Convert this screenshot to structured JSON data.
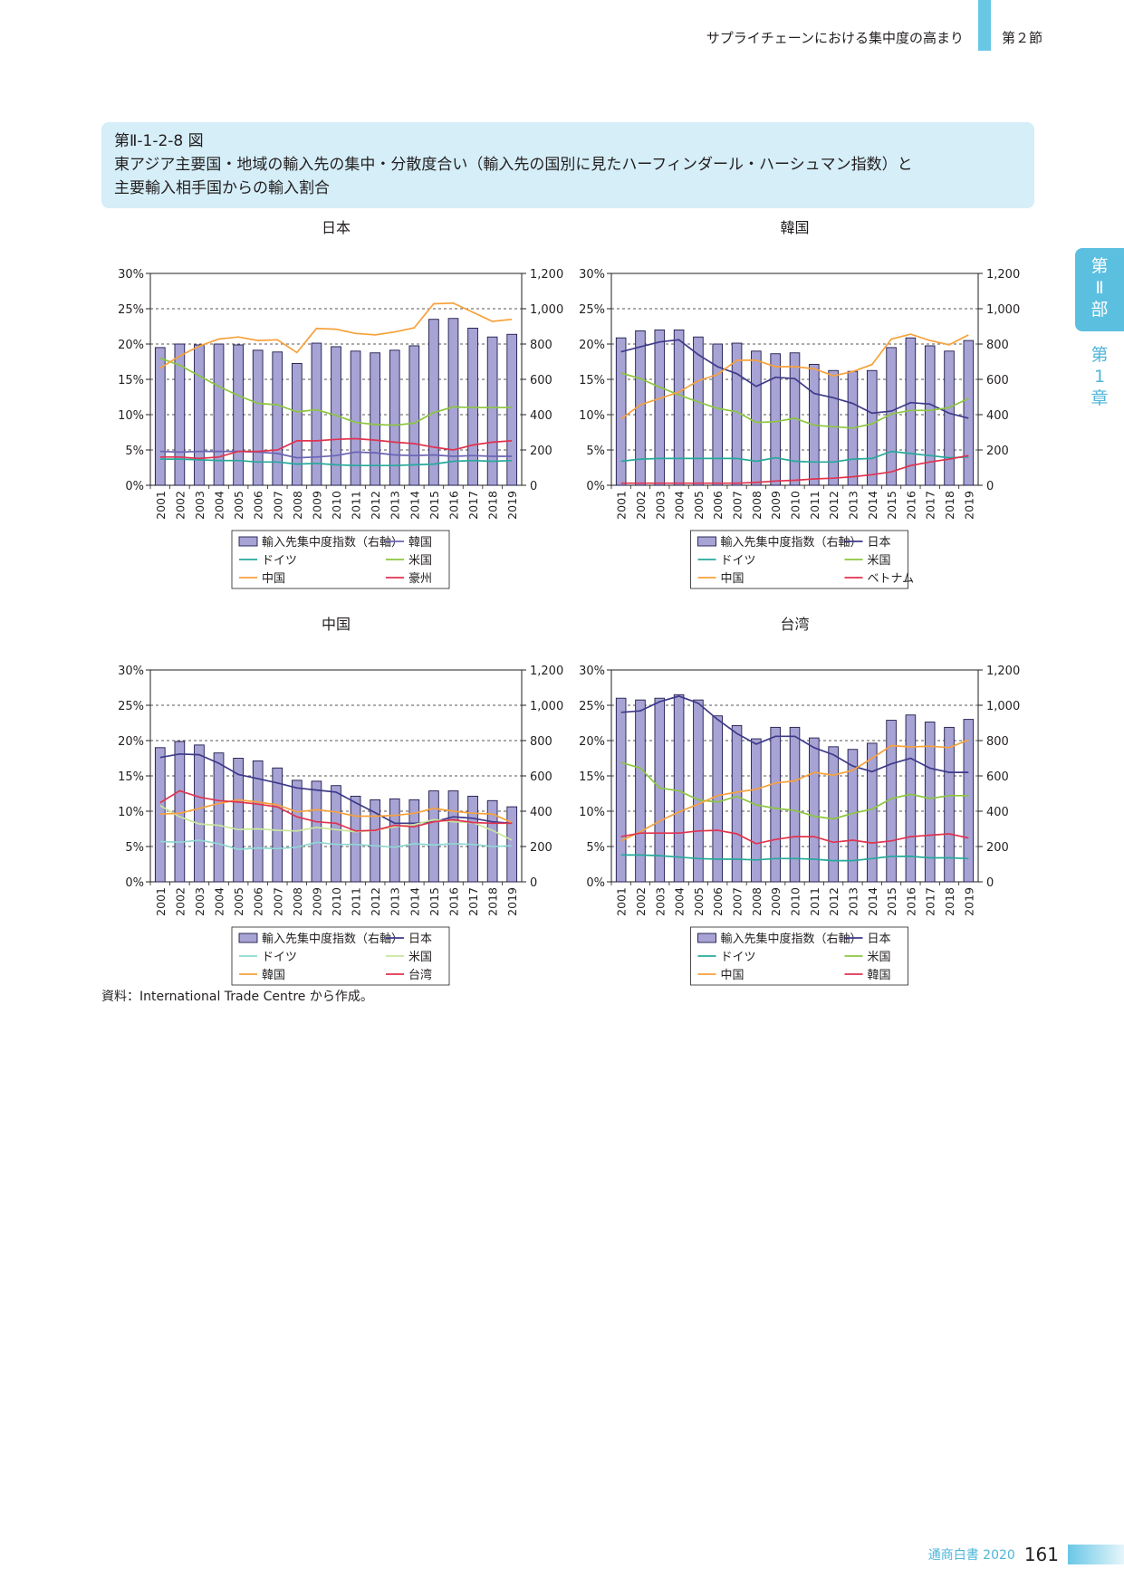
{
  "header": {
    "section": "サプライチェーンにおける集中度の高まり",
    "part": "第２節"
  },
  "side_tab": {
    "part": [
      "第",
      "Ⅱ",
      "部"
    ],
    "chapter": [
      "第",
      "1",
      "章"
    ]
  },
  "figure": {
    "number": "第Ⅱ-1-2-8 図",
    "title_line1": "東アジア主要国・地域の輸入先の集中・分散度合い（輸入先の国別に見たハーフィンダール・ハーシュマン指数）と",
    "title_line2": "主要輸入相手国からの輸入割合"
  },
  "source": "資料：International Trade Centre から作成。",
  "footer": {
    "publication": "通商白書 2020",
    "page": "161"
  },
  "colors": {
    "bar": "#a7a3d4",
    "bar_edge": "#1e1a4a",
    "blue": "#3e3a8a",
    "teal": "#26a99b",
    "green": "#8cc63f",
    "orange": "#f7a13b",
    "red": "#e0334f"
  },
  "chart_data": [
    {
      "type": "bar",
      "title": "日本",
      "categories": [
        "2001",
        "2002",
        "2003",
        "2004",
        "2005",
        "2006",
        "2007",
        "2008",
        "2009",
        "2010",
        "2011",
        "2012",
        "2013",
        "2014",
        "2015",
        "2016",
        "2017",
        "2018",
        "2019"
      ],
      "left_ticks": [
        "0%",
        "5%",
        "10%",
        "15%",
        "20%",
        "25%",
        "30%"
      ],
      "right_ticks": [
        "0",
        "200",
        "400",
        "600",
        "800",
        "1,000",
        "1,200"
      ],
      "ylim": [
        0,
        30
      ],
      "ylim_right": [
        0,
        1200
      ],
      "grid": "dashed",
      "bars": {
        "name": "輸入先集中度指数（右軸）",
        "values": [
          780,
          800,
          795,
          800,
          795,
          765,
          755,
          690,
          805,
          785,
          760,
          750,
          765,
          790,
          940,
          945,
          890,
          840,
          855
        ]
      },
      "lines": [
        {
          "name": "韓国",
          "color": "#6a64b4",
          "values": [
            4.8,
            4.7,
            4.8,
            4.8,
            4.8,
            4.7,
            4.5,
            3.9,
            4.0,
            4.2,
            4.7,
            4.6,
            4.3,
            4.2,
            4.3,
            4.1,
            4.2,
            4.1,
            4.1
          ]
        },
        {
          "name": "ドイツ",
          "color": "#26a99b",
          "values": [
            3.7,
            3.7,
            3.6,
            3.5,
            3.5,
            3.3,
            3.3,
            3.0,
            3.1,
            2.9,
            2.8,
            2.8,
            2.8,
            2.9,
            3.0,
            3.4,
            3.5,
            3.4,
            3.5
          ]
        },
        {
          "name": "米国",
          "color": "#8cc63f",
          "values": [
            18.0,
            17.0,
            15.5,
            14.0,
            12.7,
            11.6,
            11.4,
            10.4,
            10.7,
            9.9,
            8.9,
            8.6,
            8.5,
            8.8,
            10.3,
            11.1,
            11.0,
            11.0,
            11.0
          ]
        },
        {
          "name": "豪州",
          "color": "#e0334f",
          "values": [
            4.0,
            4.0,
            3.8,
            4.0,
            4.8,
            4.8,
            5.0,
            6.3,
            6.3,
            6.5,
            6.6,
            6.4,
            6.1,
            5.9,
            5.4,
            5.0,
            5.7,
            6.1,
            6.3
          ]
        },
        {
          "name": "中国",
          "color": "#f7a13b",
          "values": [
            16.6,
            18.3,
            19.7,
            20.7,
            21.0,
            20.5,
            20.6,
            18.8,
            22.2,
            22.1,
            21.5,
            21.3,
            21.7,
            22.3,
            25.7,
            25.8,
            24.5,
            23.2,
            23.5
          ]
        }
      ],
      "legend": [
        "輸入先集中度指数（右軸）",
        "韓国",
        "ドイツ",
        "米国",
        "中国",
        "豪州"
      ]
    },
    {
      "type": "bar",
      "title": "韓国",
      "categories": [
        "2001",
        "2002",
        "2003",
        "2004",
        "2005",
        "2006",
        "2007",
        "2008",
        "2009",
        "2010",
        "2011",
        "2012",
        "2013",
        "2014",
        "2015",
        "2016",
        "2017",
        "2018",
        "2019"
      ],
      "left_ticks": [
        "0%",
        "5%",
        "10%",
        "15%",
        "20%",
        "25%",
        "30%"
      ],
      "right_ticks": [
        "0",
        "200",
        "400",
        "600",
        "800",
        "1,000",
        "1,200"
      ],
      "ylim": [
        0,
        30
      ],
      "ylim_right": [
        0,
        1200
      ],
      "grid": "dashed",
      "bars": {
        "name": "輸入先集中度指数（右軸）",
        "values": [
          835,
          875,
          880,
          880,
          840,
          800,
          805,
          760,
          745,
          750,
          685,
          650,
          645,
          650,
          780,
          835,
          790,
          760,
          820
        ]
      },
      "lines": [
        {
          "name": "日本",
          "color": "#3e3a8a",
          "values": [
            18.9,
            19.6,
            20.3,
            20.6,
            18.5,
            16.8,
            15.8,
            14.0,
            15.3,
            15.1,
            13.0,
            12.4,
            11.6,
            10.2,
            10.5,
            11.7,
            11.5,
            10.2,
            9.5
          ]
        },
        {
          "name": "ドイツ",
          "color": "#26a99b",
          "values": [
            3.4,
            3.7,
            3.8,
            3.8,
            3.8,
            3.8,
            3.8,
            3.4,
            3.9,
            3.4,
            3.3,
            3.3,
            3.7,
            3.8,
            4.8,
            4.5,
            4.2,
            3.9,
            4.0
          ]
        },
        {
          "name": "米国",
          "color": "#8cc63f",
          "values": [
            15.9,
            15.1,
            13.9,
            12.8,
            11.8,
            10.9,
            10.4,
            8.9,
            9.0,
            9.5,
            8.5,
            8.3,
            8.1,
            8.7,
            10.1,
            10.6,
            10.6,
            11.0,
            12.3
          ]
        },
        {
          "name": "中国",
          "color": "#f7a13b",
          "values": [
            9.4,
            11.4,
            12.3,
            13.2,
            14.8,
            15.7,
            17.7,
            17.7,
            16.8,
            16.8,
            16.5,
            15.5,
            16.1,
            17.1,
            20.7,
            21.4,
            20.5,
            19.9,
            21.3
          ]
        },
        {
          "name": "ベトナム",
          "color": "#e0334f",
          "values": [
            0.3,
            0.3,
            0.3,
            0.3,
            0.3,
            0.3,
            0.3,
            0.4,
            0.6,
            0.7,
            0.9,
            1.0,
            1.2,
            1.5,
            1.9,
            2.8,
            3.3,
            3.7,
            4.2
          ]
        }
      ],
      "legend": [
        "輸入先集中度指数（右軸）",
        "日本",
        "ドイツ",
        "米国",
        "中国",
        "ベトナム"
      ]
    },
    {
      "type": "bar",
      "title": "中国",
      "categories": [
        "2001",
        "2002",
        "2003",
        "2004",
        "2005",
        "2006",
        "2007",
        "2008",
        "2009",
        "2010",
        "2011",
        "2012",
        "2013",
        "2014",
        "2015",
        "2016",
        "2017",
        "2018",
        "2019"
      ],
      "left_ticks": [
        "0%",
        "5%",
        "10%",
        "15%",
        "20%",
        "25%",
        "30%"
      ],
      "right_ticks": [
        "0",
        "200",
        "400",
        "600",
        "800",
        "1,000",
        "1,200"
      ],
      "ylim": [
        0,
        30
      ],
      "ylim_right": [
        0,
        1200
      ],
      "grid": "dashed",
      "bars": {
        "name": "輸入先集中度指数（右軸）",
        "values": [
          760,
          795,
          775,
          730,
          700,
          685,
          645,
          575,
          570,
          545,
          485,
          465,
          470,
          465,
          515,
          515,
          485,
          460,
          425
        ]
      },
      "lines": [
        {
          "name": "日本",
          "color": "#3e3a8a",
          "values": [
            17.6,
            18.1,
            18.0,
            16.8,
            15.2,
            14.6,
            14.0,
            13.3,
            13.0,
            12.7,
            11.2,
            9.8,
            8.3,
            8.3,
            8.5,
            9.2,
            9.0,
            8.5,
            8.3
          ]
        },
        {
          "name": "ドイツ",
          "color": "#8fd8d2",
          "values": [
            5.7,
            5.6,
            5.9,
            5.4,
            4.6,
            4.8,
            4.7,
            4.9,
            5.6,
            5.3,
            5.3,
            5.1,
            4.9,
            5.4,
            5.2,
            5.4,
            5.3,
            5.0,
            5.1
          ]
        },
        {
          "name": "米国",
          "color": "#c8e69c",
          "values": [
            10.8,
            9.2,
            8.2,
            8.0,
            7.4,
            7.5,
            7.3,
            7.2,
            7.7,
            7.4,
            7.1,
            7.3,
            7.8,
            8.1,
            8.8,
            8.5,
            8.4,
            7.3,
            5.9
          ]
        },
        {
          "name": "韓国",
          "color": "#f7a13b",
          "values": [
            9.6,
            9.7,
            10.4,
            11.1,
            11.6,
            11.3,
            10.9,
            9.9,
            10.2,
            9.9,
            9.3,
            9.3,
            9.4,
            9.7,
            10.4,
            10.0,
            9.7,
            9.6,
            8.4
          ]
        },
        {
          "name": "台湾",
          "color": "#e0334f",
          "values": [
            11.2,
            12.9,
            12.0,
            11.5,
            11.3,
            11.0,
            10.6,
            9.2,
            8.5,
            8.3,
            7.2,
            7.3,
            8.0,
            7.8,
            8.5,
            8.8,
            8.4,
            8.3,
            8.3
          ]
        }
      ],
      "legend": [
        "輸入先集中度指数（右軸）",
        "日本",
        "ドイツ",
        "米国",
        "韓国",
        "台湾"
      ]
    },
    {
      "type": "bar",
      "title": "台湾",
      "categories": [
        "2001",
        "2002",
        "2003",
        "2004",
        "2005",
        "2006",
        "2007",
        "2008",
        "2009",
        "2010",
        "2011",
        "2012",
        "2013",
        "2014",
        "2015",
        "2016",
        "2017",
        "2018",
        "2019"
      ],
      "left_ticks": [
        "0%",
        "5%",
        "10%",
        "15%",
        "20%",
        "25%",
        "30%"
      ],
      "right_ticks": [
        "0",
        "200",
        "400",
        "600",
        "800",
        "1,000",
        "1,200"
      ],
      "ylim": [
        0,
        30
      ],
      "ylim_right": [
        0,
        1200
      ],
      "grid": "dashed",
      "bars": {
        "name": "輸入先集中度指数（右軸）",
        "values": [
          1040,
          1030,
          1040,
          1060,
          1030,
          940,
          885,
          810,
          875,
          875,
          815,
          765,
          750,
          785,
          915,
          945,
          905,
          875,
          920
        ]
      },
      "lines": [
        {
          "name": "日本",
          "color": "#3e3a8a",
          "values": [
            24.0,
            24.2,
            25.5,
            26.3,
            25.3,
            23.0,
            21.0,
            19.5,
            20.6,
            20.6,
            19.0,
            18.0,
            16.4,
            15.6,
            16.7,
            17.5,
            16.1,
            15.5,
            15.5
          ]
        },
        {
          "name": "ドイツ",
          "color": "#26a99b",
          "values": [
            3.8,
            3.8,
            3.7,
            3.5,
            3.3,
            3.2,
            3.2,
            3.1,
            3.3,
            3.3,
            3.2,
            3.0,
            3.0,
            3.3,
            3.6,
            3.6,
            3.4,
            3.4,
            3.3
          ]
        },
        {
          "name": "米国",
          "color": "#8cc63f",
          "values": [
            16.9,
            16.1,
            13.3,
            12.9,
            11.6,
            11.3,
            12.1,
            10.9,
            10.4,
            10.1,
            9.3,
            8.9,
            9.7,
            10.3,
            11.8,
            12.4,
            11.8,
            12.2,
            12.2
          ]
        },
        {
          "name": "中国",
          "color": "#f7a13b",
          "values": [
            5.8,
            7.1,
            8.6,
            9.9,
            11.0,
            12.2,
            12.7,
            13.1,
            14.0,
            14.3,
            15.5,
            15.1,
            15.8,
            17.5,
            19.3,
            19.1,
            19.2,
            19.0,
            20.1
          ]
        },
        {
          "name": "韓国",
          "color": "#e0334f",
          "values": [
            6.4,
            6.9,
            6.9,
            6.9,
            7.2,
            7.3,
            6.8,
            5.4,
            6.0,
            6.4,
            6.4,
            5.6,
            5.9,
            5.5,
            5.8,
            6.4,
            6.6,
            6.8,
            6.2
          ]
        }
      ],
      "legend": [
        "輸入先集中度指数（右軸）",
        "日本",
        "ドイツ",
        "米国",
        "中国",
        "韓国"
      ]
    }
  ]
}
